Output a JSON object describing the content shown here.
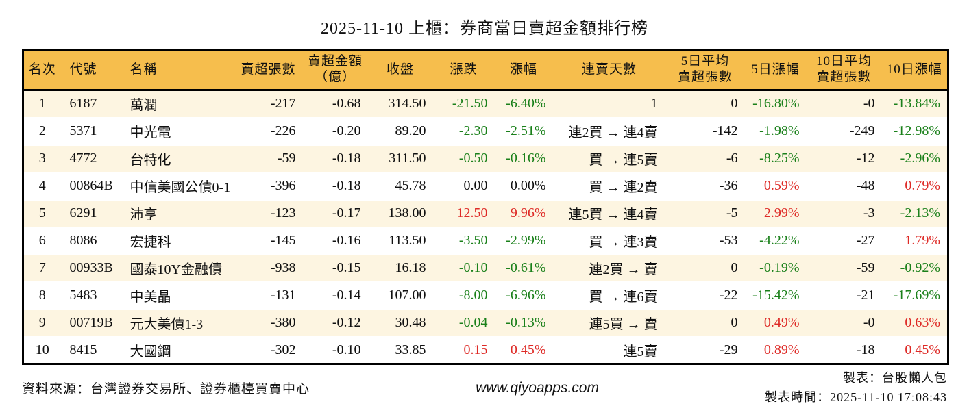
{
  "title": "2025-11-10 上櫃：券商當日賣超金額排行榜",
  "colors": {
    "header_bg": "#F6BE4D",
    "row_stripe": "#FDF5E1",
    "up_red": "#DE2A26",
    "down_green": "#1A801A"
  },
  "table": {
    "headers": [
      "名次",
      "代號",
      "名稱",
      "賣超張數",
      "賣超金額\n（億）",
      "收盤",
      "漲跌",
      "漲幅",
      "連賣天數",
      "5日平均\n賣超張數",
      "5日漲幅",
      "10日平均\n賣超張數",
      "10日漲幅"
    ],
    "rows": [
      {
        "rank": "1",
        "code": "6187",
        "name": "萬潤",
        "sell_volume": "-217",
        "sell_amount": "-0.68",
        "close": "314.50",
        "change": "-21.50",
        "change_pct": "-6.40%",
        "change_dir": "down",
        "streak": "1",
        "avg5_volume": "0",
        "pct5": "-16.80%",
        "pct5_dir": "down",
        "avg10_volume": "-0",
        "pct10": "-13.84%",
        "pct10_dir": "down"
      },
      {
        "rank": "2",
        "code": "5371",
        "name": "中光電",
        "sell_volume": "-226",
        "sell_amount": "-0.20",
        "close": "89.20",
        "change": "-2.30",
        "change_pct": "-2.51%",
        "change_dir": "down",
        "streak": "連2買 → 連4賣",
        "avg5_volume": "-142",
        "pct5": "-1.98%",
        "pct5_dir": "down",
        "avg10_volume": "-249",
        "pct10": "-12.98%",
        "pct10_dir": "down"
      },
      {
        "rank": "3",
        "code": "4772",
        "name": "台特化",
        "sell_volume": "-59",
        "sell_amount": "-0.18",
        "close": "311.50",
        "change": "-0.50",
        "change_pct": "-0.16%",
        "change_dir": "down",
        "streak": "買 → 連5賣",
        "avg5_volume": "-6",
        "pct5": "-8.25%",
        "pct5_dir": "down",
        "avg10_volume": "-12",
        "pct10": "-2.96%",
        "pct10_dir": "down"
      },
      {
        "rank": "4",
        "code": "00864B",
        "name": "中信美國公債0-1",
        "sell_volume": "-396",
        "sell_amount": "-0.18",
        "close": "45.78",
        "change": "0.00",
        "change_pct": "0.00%",
        "change_dir": "flat",
        "streak": "買 → 連2賣",
        "avg5_volume": "-36",
        "pct5": "0.59%",
        "pct5_dir": "up",
        "avg10_volume": "-48",
        "pct10": "0.79%",
        "pct10_dir": "up"
      },
      {
        "rank": "5",
        "code": "6291",
        "name": "沛亨",
        "sell_volume": "-123",
        "sell_amount": "-0.17",
        "close": "138.00",
        "change": "12.50",
        "change_pct": "9.96%",
        "change_dir": "up",
        "streak": "連5買 → 連4賣",
        "avg5_volume": "-5",
        "pct5": "2.99%",
        "pct5_dir": "up",
        "avg10_volume": "-3",
        "pct10": "-2.13%",
        "pct10_dir": "down"
      },
      {
        "rank": "6",
        "code": "8086",
        "name": "宏捷科",
        "sell_volume": "-145",
        "sell_amount": "-0.16",
        "close": "113.50",
        "change": "-3.50",
        "change_pct": "-2.99%",
        "change_dir": "down",
        "streak": "買 → 連3賣",
        "avg5_volume": "-53",
        "pct5": "-4.22%",
        "pct5_dir": "down",
        "avg10_volume": "-27",
        "pct10": "1.79%",
        "pct10_dir": "up"
      },
      {
        "rank": "7",
        "code": "00933B",
        "name": "國泰10Y金融債",
        "sell_volume": "-938",
        "sell_amount": "-0.15",
        "close": "16.18",
        "change": "-0.10",
        "change_pct": "-0.61%",
        "change_dir": "down",
        "streak": "連2買 → 賣",
        "avg5_volume": "0",
        "pct5": "-0.19%",
        "pct5_dir": "down",
        "avg10_volume": "-59",
        "pct10": "-0.92%",
        "pct10_dir": "down"
      },
      {
        "rank": "8",
        "code": "5483",
        "name": "中美晶",
        "sell_volume": "-131",
        "sell_amount": "-0.14",
        "close": "107.00",
        "change": "-8.00",
        "change_pct": "-6.96%",
        "change_dir": "down",
        "streak": "買 → 連6賣",
        "avg5_volume": "-22",
        "pct5": "-15.42%",
        "pct5_dir": "down",
        "avg10_volume": "-21",
        "pct10": "-17.69%",
        "pct10_dir": "down"
      },
      {
        "rank": "9",
        "code": "00719B",
        "name": "元大美債1-3",
        "sell_volume": "-380",
        "sell_amount": "-0.12",
        "close": "30.48",
        "change": "-0.04",
        "change_pct": "-0.13%",
        "change_dir": "down",
        "streak": "連5買 → 賣",
        "avg5_volume": "0",
        "pct5": "0.49%",
        "pct5_dir": "up",
        "avg10_volume": "-0",
        "pct10": "0.63%",
        "pct10_dir": "up"
      },
      {
        "rank": "10",
        "code": "8415",
        "name": "大國鋼",
        "sell_volume": "-302",
        "sell_amount": "-0.10",
        "close": "33.85",
        "change": "0.15",
        "change_pct": "0.45%",
        "change_dir": "up",
        "streak": "連5賣",
        "avg5_volume": "-29",
        "pct5": "0.89%",
        "pct5_dir": "up",
        "avg10_volume": "-18",
        "pct10": "0.45%",
        "pct10_dir": "up"
      }
    ]
  },
  "footer": {
    "source": "資料來源：台灣證券交易所、證券櫃檯買賣中心",
    "website": "www.qiyoapps.com",
    "author": "製表：台股懶人包",
    "timestamp": "製表時間：2025-11-10 17:08:43"
  }
}
